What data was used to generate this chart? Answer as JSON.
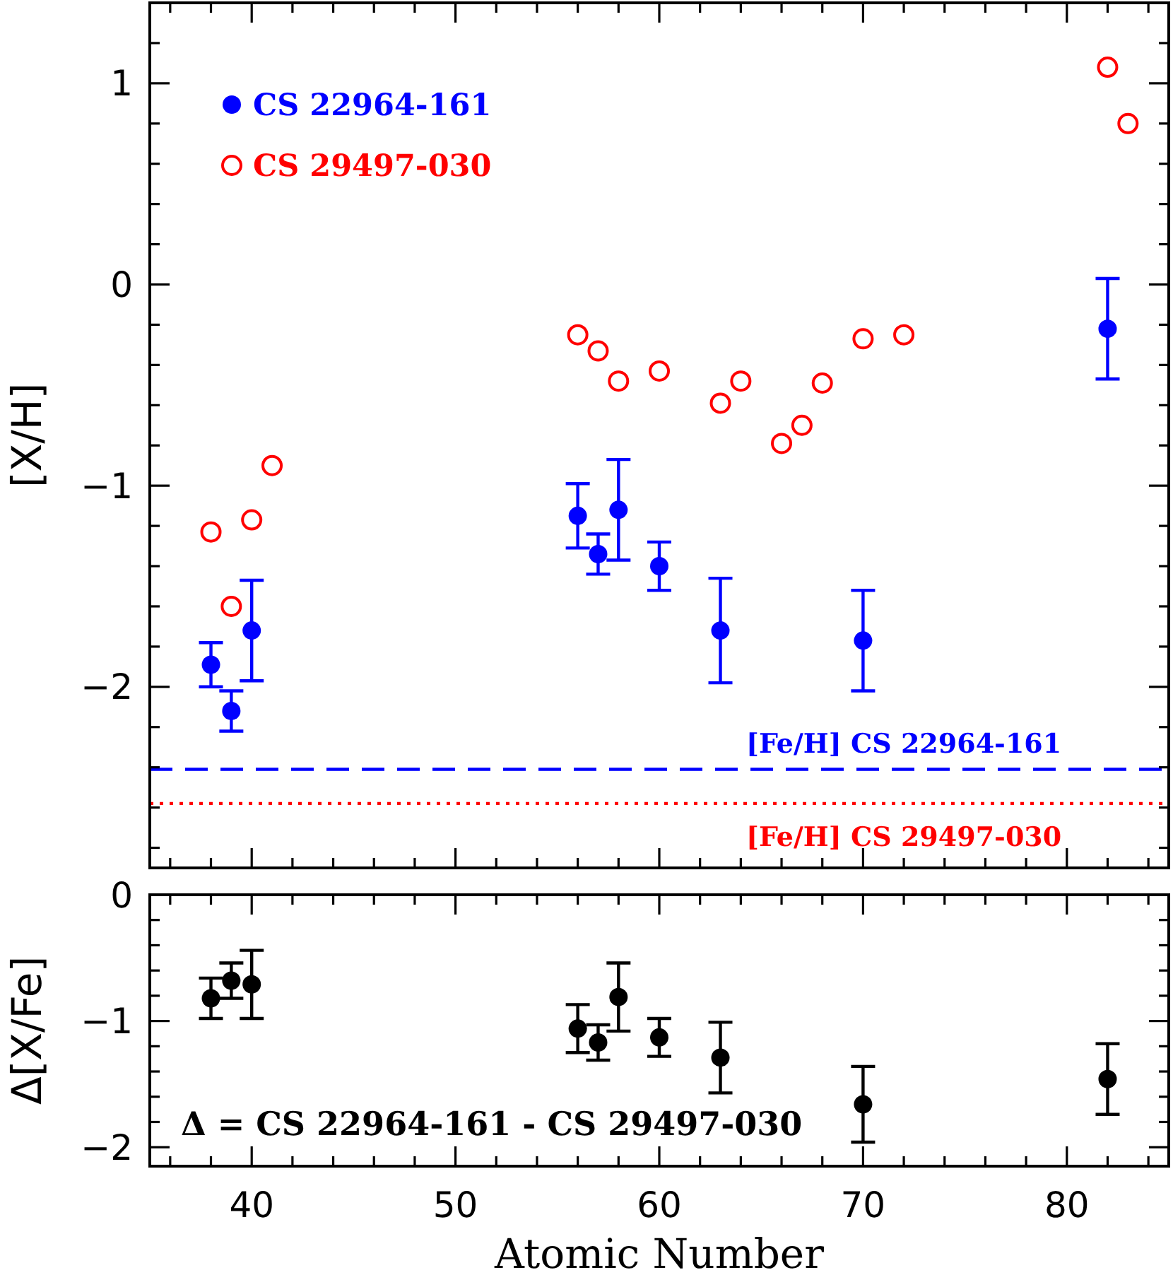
{
  "chart_data": [
    {
      "type": "scatter",
      "ylabel": "[X/H]",
      "xlim": [
        35,
        85
      ],
      "ylim": [
        -2.9,
        1.4
      ],
      "tick_labels": "y",
      "legend": "top left",
      "marker": "circle",
      "xticks": [
        {
          "value": 36,
          "label": null
        },
        {
          "value": 38,
          "label": null
        },
        40,
        {
          "value": 42,
          "label": null
        },
        {
          "value": 44,
          "label": null
        },
        {
          "value": 46,
          "label": null
        },
        {
          "value": 48,
          "label": null
        },
        50,
        {
          "value": 52,
          "label": null
        },
        {
          "value": 54,
          "label": null
        },
        {
          "value": 56,
          "label": null
        },
        {
          "value": 58,
          "label": null
        },
        60,
        {
          "value": 62,
          "label": null
        },
        {
          "value": 64,
          "label": null
        },
        {
          "value": 66,
          "label": null
        },
        {
          "value": 68,
          "label": null
        },
        70,
        {
          "value": 72,
          "label": null
        },
        {
          "value": 74,
          "label": null
        },
        {
          "value": 76,
          "label": null
        },
        {
          "value": 78,
          "label": null
        },
        80,
        {
          "value": 82,
          "label": null
        },
        {
          "value": 84,
          "label": null
        }
      ],
      "yticks": [
        {
          "value": -2.8,
          "label": null
        },
        {
          "value": -2.6,
          "label": null
        },
        {
          "value": -2.4,
          "label": null
        },
        {
          "value": -2.2,
          "label": null
        },
        {
          "value": -2,
          "label": "−2"
        },
        {
          "value": -1.8,
          "label": null
        },
        {
          "value": -1.6,
          "label": null
        },
        {
          "value": -1.4,
          "label": null
        },
        {
          "value": -1.2,
          "label": null
        },
        {
          "value": -1,
          "label": "−1"
        },
        {
          "value": -0.8,
          "label": null
        },
        {
          "value": -0.6,
          "label": null
        },
        {
          "value": -0.4,
          "label": null
        },
        {
          "value": -0.2,
          "label": null
        },
        {
          "value": 0,
          "label": "0"
        },
        {
          "value": 0.2,
          "label": null
        },
        {
          "value": 0.4,
          "label": null
        },
        {
          "value": 0.6,
          "label": null
        },
        {
          "value": 0.8,
          "label": null
        },
        {
          "value": 1,
          "label": "1"
        },
        {
          "value": 1.2,
          "label": null
        }
      ],
      "series": [
        {
          "name": "CS 22964-161",
          "color": "#0000ff",
          "x": [
            38,
            39,
            40,
            56,
            57,
            58,
            60,
            63,
            70,
            82
          ],
          "values": [
            -1.89,
            -2.12,
            -1.72,
            -1.15,
            -1.34,
            -1.12,
            -1.4,
            -1.72,
            -1.77,
            -0.22
          ],
          "errors": [
            0.11,
            0.1,
            0.25,
            0.16,
            0.1,
            0.25,
            0.12,
            0.26,
            0.25,
            0.25
          ]
        },
        {
          "name": "CS 29497-030",
          "color": "#ff0000",
          "x": [
            38,
            39,
            40,
            41,
            56,
            57,
            58,
            60,
            63,
            64,
            66,
            67,
            68,
            70,
            72,
            82,
            83
          ],
          "values": [
            -1.23,
            -1.6,
            -1.17,
            -0.9,
            -0.25,
            -0.33,
            -0.48,
            -0.43,
            -0.59,
            -0.48,
            -0.79,
            -0.7,
            -0.49,
            -0.27,
            -0.25,
            1.08,
            0.8
          ]
        }
      ],
      "ref_lines": [
        {
          "axis": "y",
          "value": -2.41,
          "label": "[Fe/H] CS 22964-161",
          "color": "#0000ff",
          "line_style": "dashed"
        },
        {
          "axis": "y",
          "value": -2.58,
          "label": "[Fe/H] CS 29497-030",
          "color": "#ff0000",
          "line_style": "dotted"
        }
      ]
    },
    {
      "type": "scatter",
      "xlabel": "Atomic Number",
      "ylabel": "Δ[X/Fe]",
      "xlim": [
        35,
        85
      ],
      "ylim": [
        -2.15,
        0
      ],
      "marker": "circle",
      "color": "#000000",
      "xticks": [
        {
          "value": 36,
          "label": null
        },
        {
          "value": 38,
          "label": null
        },
        40,
        {
          "value": 42,
          "label": null
        },
        {
          "value": 44,
          "label": null
        },
        {
          "value": 46,
          "label": null
        },
        {
          "value": 48,
          "label": null
        },
        50,
        {
          "value": 52,
          "label": null
        },
        {
          "value": 54,
          "label": null
        },
        {
          "value": 56,
          "label": null
        },
        {
          "value": 58,
          "label": null
        },
        60,
        {
          "value": 62,
          "label": null
        },
        {
          "value": 64,
          "label": null
        },
        {
          "value": 66,
          "label": null
        },
        {
          "value": 68,
          "label": null
        },
        70,
        {
          "value": 72,
          "label": null
        },
        {
          "value": 74,
          "label": null
        },
        {
          "value": 76,
          "label": null
        },
        {
          "value": 78,
          "label": null
        },
        80,
        {
          "value": 82,
          "label": null
        },
        {
          "value": 84,
          "label": null
        }
      ],
      "yticks": [
        {
          "value": -2,
          "label": "−2"
        },
        {
          "value": -1.8,
          "label": null
        },
        {
          "value": -1.6,
          "label": null
        },
        {
          "value": -1.4,
          "label": null
        },
        {
          "value": -1.2,
          "label": null
        },
        {
          "value": -1,
          "label": "−1"
        },
        {
          "value": -0.8,
          "label": null
        },
        {
          "value": -0.6,
          "label": null
        },
        {
          "value": -0.4,
          "label": null
        },
        {
          "value": -0.2,
          "label": null
        },
        {
          "value": 0,
          "label": "0"
        }
      ],
      "x": [
        38,
        39,
        40,
        56,
        57,
        58,
        60,
        63,
        70,
        82
      ],
      "values": [
        -0.82,
        -0.68,
        -0.71,
        -1.06,
        -1.17,
        -0.81,
        -1.13,
        -1.29,
        -1.66,
        -1.46
      ],
      "errors": [
        0.16,
        0.14,
        0.27,
        0.19,
        0.14,
        0.27,
        0.15,
        0.28,
        0.3,
        0.28
      ],
      "annotations": [
        "Δ = CS 22964-161 - CS 29497-030"
      ]
    }
  ]
}
